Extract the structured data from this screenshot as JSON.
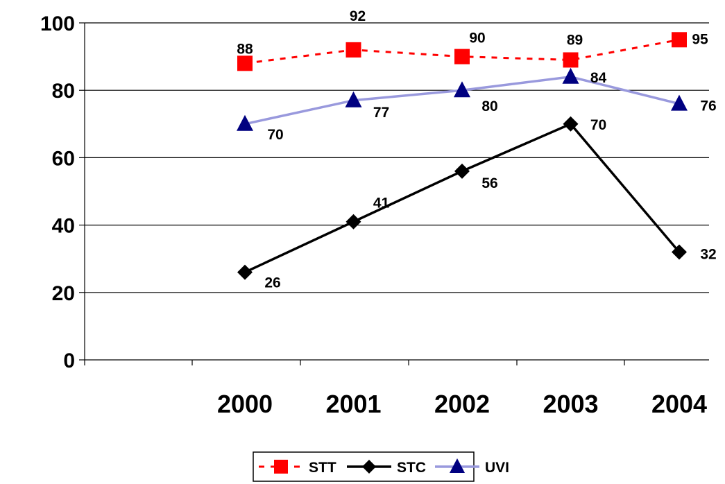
{
  "chart_data": {
    "type": "line",
    "title": "",
    "xlabel": "",
    "ylabel": "",
    "categories": [
      "2000",
      "2001",
      "2002",
      "2003",
      "2004"
    ],
    "ylim": [
      0,
      100
    ],
    "yticks": [
      "0",
      "20",
      "40",
      "60",
      "80",
      "100"
    ],
    "grid": "horizontal",
    "legend_position": "bottom",
    "series": [
      {
        "name": "STT",
        "values": [
          88,
          92,
          90,
          89,
          95
        ],
        "color": "#ff0000",
        "line": "dashed",
        "marker": "square"
      },
      {
        "name": "STC",
        "values": [
          26,
          41,
          56,
          70,
          32
        ],
        "color": "#000000",
        "line": "solid",
        "marker": "diamond"
      },
      {
        "name": "UVI",
        "values": [
          70,
          77,
          80,
          84,
          76
        ],
        "color": "#9999dd",
        "line": "solid",
        "marker": "triangle",
        "marker_color": "#000080"
      }
    ]
  }
}
